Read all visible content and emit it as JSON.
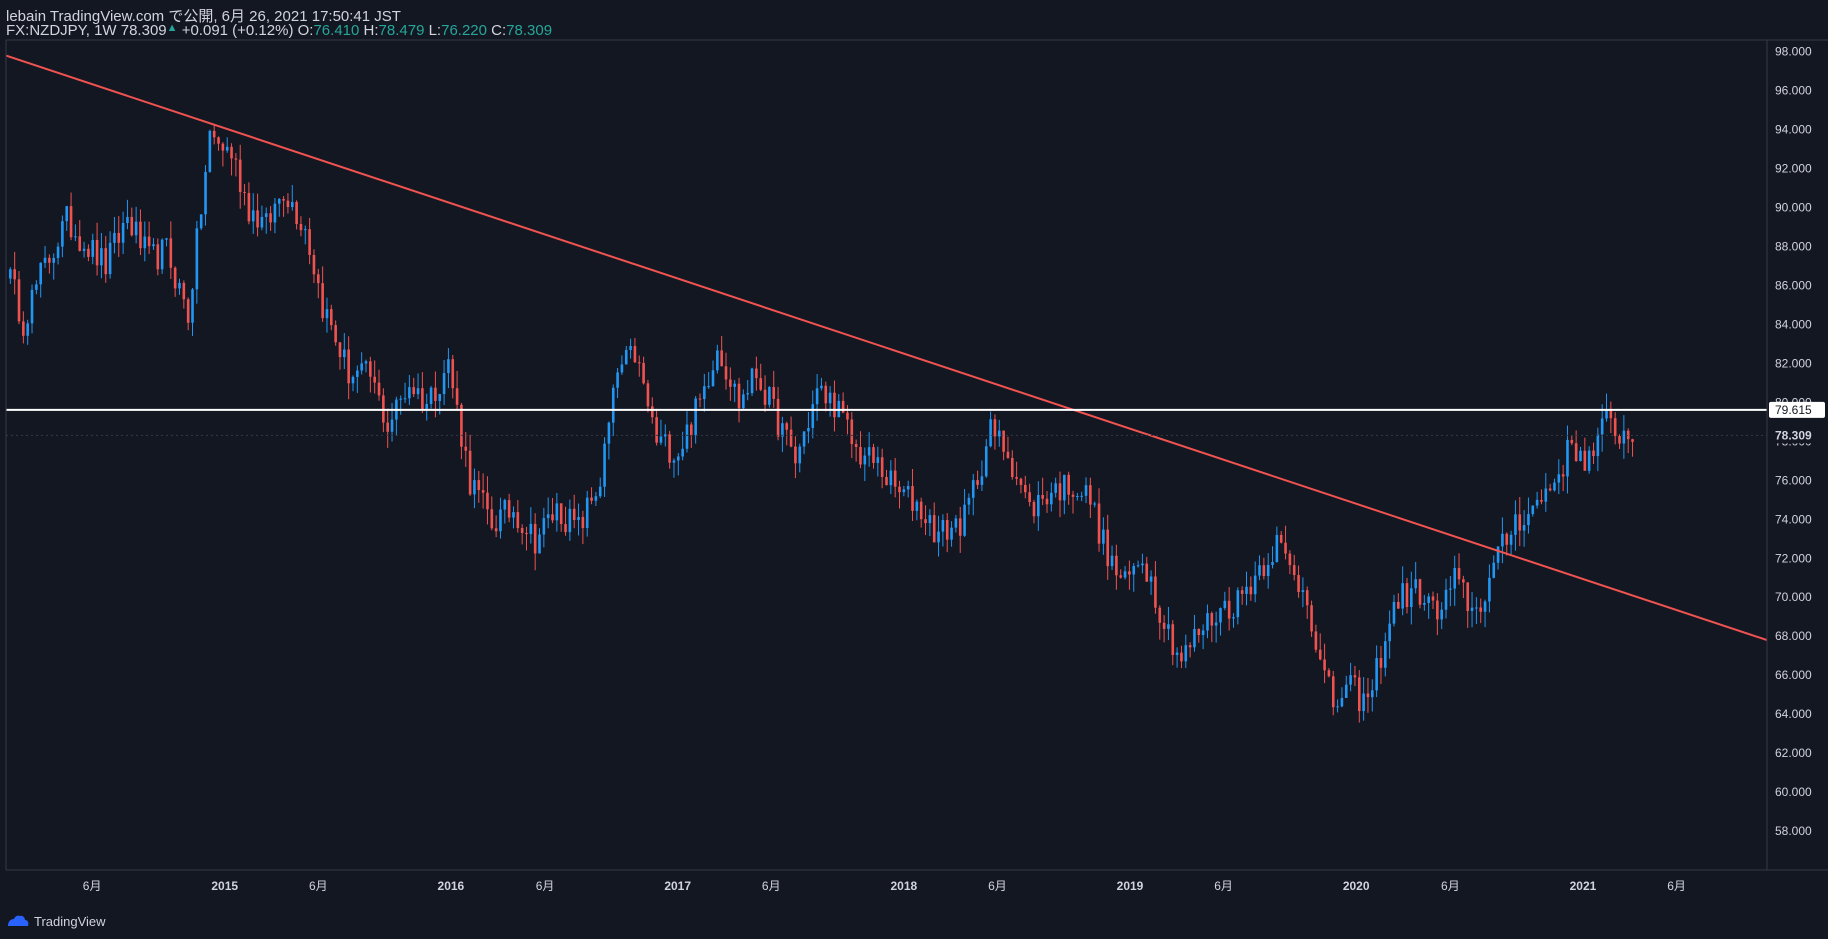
{
  "header": {
    "publish_line": "lebain TradingView.com で公開, 6月 26, 2021 17:50:41 JST",
    "symbol_interval": "FX:NZDJPY, 1W",
    "last": "78.309",
    "change": "+0.091 (+0.12%)",
    "o_label": "O:",
    "o_value": "76.410",
    "h_label": "H:",
    "h_value": "78.479",
    "l_label": "L:",
    "l_value": "76.220",
    "c_label": "C:",
    "c_value": "78.309"
  },
  "footer": {
    "brand": "TradingView",
    "logo_icon": "tradingview-logo-icon"
  },
  "colors": {
    "background": "#131722",
    "up": "#2196f3",
    "down": "#ef5350",
    "trendline": "#f05350",
    "hline": "#ffffff",
    "text": "#d1d4dc",
    "ohlc": "#26a69a",
    "grid": "#2a2e39"
  },
  "chart_data": {
    "type": "candlestick",
    "symbol": "FX:NZDJPY",
    "interval": "1W",
    "y_ticks": [
      58,
      60,
      62,
      64,
      66,
      68,
      70,
      72,
      74,
      76,
      78,
      80,
      82,
      84,
      86,
      88,
      90,
      92,
      94,
      96,
      98
    ],
    "y_tick_labels": [
      "58.000",
      "60.000",
      "62.000",
      "64.000",
      "66.000",
      "68.000",
      "70.000",
      "72.000",
      "74.000",
      "76.000",
      "78.000",
      "80.000",
      "82.000",
      "84.000",
      "86.000",
      "88.000",
      "90.000",
      "92.000",
      "94.000",
      "96.000",
      "98.000"
    ],
    "ylim": [
      56.0,
      98.6
    ],
    "xlim": [
      "2014-01-13",
      "2021-10-25"
    ],
    "x_ticks": [
      {
        "date": "2014-06-01",
        "label": "6月",
        "bold": false
      },
      {
        "date": "2015-01-01",
        "label": "2015",
        "bold": true
      },
      {
        "date": "2015-06-01",
        "label": "6月",
        "bold": false
      },
      {
        "date": "2016-01-01",
        "label": "2016",
        "bold": true
      },
      {
        "date": "2016-06-01",
        "label": "6月",
        "bold": false
      },
      {
        "date": "2017-01-01",
        "label": "2017",
        "bold": true
      },
      {
        "date": "2017-06-01",
        "label": "6月",
        "bold": false
      },
      {
        "date": "2018-01-01",
        "label": "2018",
        "bold": true
      },
      {
        "date": "2018-06-01",
        "label": "6月",
        "bold": false
      },
      {
        "date": "2019-01-01",
        "label": "2019",
        "bold": true
      },
      {
        "date": "2019-06-01",
        "label": "6月",
        "bold": false
      },
      {
        "date": "2020-01-01",
        "label": "2020",
        "bold": true
      },
      {
        "date": "2020-06-01",
        "label": "6月",
        "bold": false
      },
      {
        "date": "2021-01-01",
        "label": "2021",
        "bold": true
      },
      {
        "date": "2021-06-01",
        "label": "6月",
        "bold": false
      }
    ],
    "path_start": "2014-01-13",
    "path_step_days": 7,
    "close_path": [
      [
        0,
        87.0
      ],
      [
        4,
        84.2
      ],
      [
        8,
        86.5
      ],
      [
        14,
        89.3
      ],
      [
        19,
        88.0
      ],
      [
        23,
        87.0
      ],
      [
        28,
        89.5
      ],
      [
        33,
        87.3
      ],
      [
        37,
        87.8
      ],
      [
        42,
        84.5
      ],
      [
        47,
        93.6
      ],
      [
        52,
        92.8
      ],
      [
        56,
        90.0
      ],
      [
        60,
        89.0
      ],
      [
        64,
        91.0
      ],
      [
        69,
        89.0
      ],
      [
        73,
        85.0
      ],
      [
        79,
        81.5
      ],
      [
        84,
        81.3
      ],
      [
        88,
        78.8
      ],
      [
        93,
        81.0
      ],
      [
        97,
        80.0
      ],
      [
        102,
        82.0
      ],
      [
        107,
        76.0
      ],
      [
        112,
        73.8
      ],
      [
        117,
        74.5
      ],
      [
        122,
        73.0
      ],
      [
        127,
        74.5
      ],
      [
        132,
        73.5
      ],
      [
        137,
        76.0
      ],
      [
        141,
        81.5
      ],
      [
        145,
        82.5
      ],
      [
        150,
        78.0
      ],
      [
        155,
        77.5
      ],
      [
        160,
        80.0
      ],
      [
        164,
        83.0
      ],
      [
        169,
        80.0
      ],
      [
        173,
        81.5
      ],
      [
        178,
        79.0
      ],
      [
        182,
        77.0
      ],
      [
        187,
        80.5
      ],
      [
        191,
        80.0
      ],
      [
        196,
        77.5
      ],
      [
        201,
        76.8
      ],
      [
        205,
        75.5
      ],
      [
        210,
        74.8
      ],
      [
        215,
        73.2
      ],
      [
        221,
        74.0
      ],
      [
        227,
        78.5
      ],
      [
        231,
        77.5
      ],
      [
        236,
        74.5
      ],
      [
        241,
        75.5
      ],
      [
        246,
        75.8
      ],
      [
        250,
        75.0
      ],
      [
        254,
        72.0
      ],
      [
        258,
        70.6
      ],
      [
        262,
        72.2
      ],
      [
        267,
        68.8
      ],
      [
        271,
        66.8
      ],
      [
        275,
        68.2
      ],
      [
        280,
        69.4
      ],
      [
        284,
        69.8
      ],
      [
        289,
        71.5
      ],
      [
        293,
        72.8
      ],
      [
        297,
        71.0
      ],
      [
        300,
        70.2
      ],
      [
        303,
        66.5
      ],
      [
        306,
        64.5
      ],
      [
        310,
        65.3
      ],
      [
        314,
        64.5
      ],
      [
        318,
        68.0
      ],
      [
        321,
        70.0
      ],
      [
        326,
        70.3
      ],
      [
        330,
        69.0
      ],
      [
        334,
        70.8
      ],
      [
        339,
        69.2
      ],
      [
        343,
        71.5
      ],
      [
        348,
        74.0
      ],
      [
        352,
        74.5
      ],
      [
        357,
        76.0
      ],
      [
        361,
        77.8
      ],
      [
        365,
        77.0
      ],
      [
        369,
        79.0
      ],
      [
        372,
        78.5
      ],
      [
        374,
        78.2
      ],
      [
        375,
        78.3
      ]
    ],
    "trendline": {
      "start": [
        "2014-01-13",
        97.8
      ],
      "end": [
        "2021-10-25",
        67.8
      ]
    },
    "horizontal_line": {
      "value": 79.615,
      "label": "79.615"
    },
    "last_price": {
      "value": 78.309,
      "label": "78.309"
    }
  }
}
